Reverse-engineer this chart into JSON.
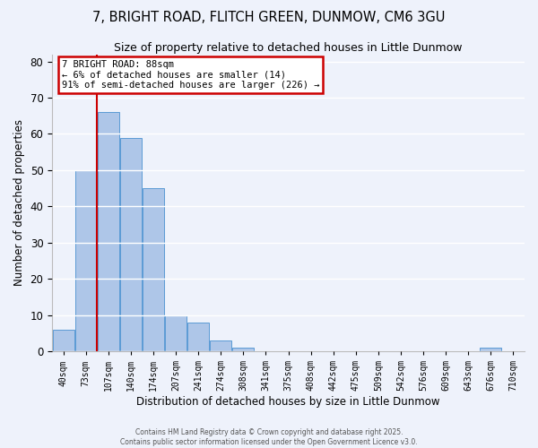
{
  "title": "7, BRIGHT ROAD, FLITCH GREEN, DUNMOW, CM6 3GU",
  "subtitle": "Size of property relative to detached houses in Little Dunmow",
  "xlabel": "Distribution of detached houses by size in Little Dunmow",
  "ylabel": "Number of detached properties",
  "bar_labels": [
    "40sqm",
    "73sqm",
    "107sqm",
    "140sqm",
    "174sqm",
    "207sqm",
    "241sqm",
    "274sqm",
    "308sqm",
    "341sqm",
    "375sqm",
    "408sqm",
    "442sqm",
    "475sqm",
    "509sqm",
    "542sqm",
    "576sqm",
    "609sqm",
    "643sqm",
    "676sqm",
    "710sqm"
  ],
  "bar_values": [
    6,
    50,
    66,
    59,
    45,
    10,
    8,
    3,
    1,
    0,
    0,
    0,
    0,
    0,
    0,
    0,
    0,
    0,
    0,
    1,
    0
  ],
  "bar_color": "#aec6e8",
  "bar_edge_color": "#5b9bd5",
  "ylim": [
    0,
    82
  ],
  "yticks": [
    0,
    10,
    20,
    30,
    40,
    50,
    60,
    70,
    80
  ],
  "vline_x": 1.5,
  "vline_color": "#cc0000",
  "annotation_title": "7 BRIGHT ROAD: 88sqm",
  "annotation_line1": "← 6% of detached houses are smaller (14)",
  "annotation_line2": "91% of semi-detached houses are larger (226) →",
  "annotation_box_color": "#ffffff",
  "annotation_box_edge": "#cc0000",
  "footer1": "Contains HM Land Registry data © Crown copyright and database right 2025.",
  "footer2": "Contains public sector information licensed under the Open Government Licence v3.0.",
  "background_color": "#eef2fb",
  "grid_color": "#ffffff",
  "title_fontsize": 10.5,
  "subtitle_fontsize": 9.0
}
